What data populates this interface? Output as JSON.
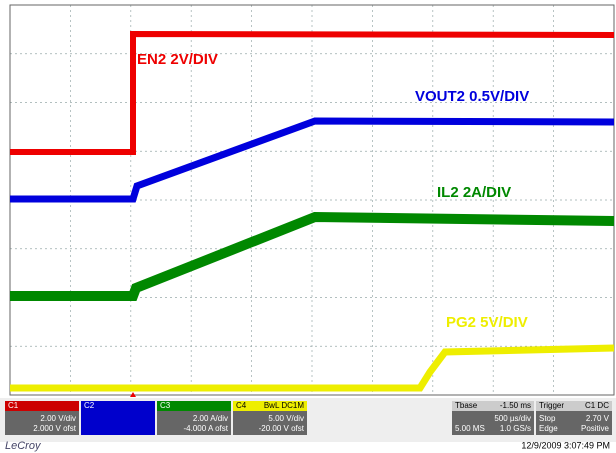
{
  "traces": [
    {
      "label": "EN2 2V/DIV"
    },
    {
      "label": "VOUT2 0.5V/DIV"
    },
    {
      "label": "IL2 2A/DIV"
    },
    {
      "label": "PG2 5V/DIV"
    }
  ],
  "channels": [
    {
      "name": "C1",
      "vdiv": "2.00 V/div",
      "offset": "2.000 V ofst"
    },
    {
      "name": "C2"
    },
    {
      "name": "C3",
      "vdiv": "2.00 A/div",
      "offset": "-4.000 A ofst"
    },
    {
      "name": "C4",
      "coupling": "BwL DC1M",
      "vdiv": "5.00 V/div",
      "offset": "-20.00 V ofst"
    }
  ],
  "timebase": {
    "title": "Tbase",
    "delay": "-1.50 ms",
    "tdiv": "500 µs/div",
    "samples": "5.00 MS",
    "rate": "1.0 GS/s"
  },
  "trigger": {
    "title": "Trigger",
    "source": "C1 DC",
    "mode": "Stop",
    "level": "2.70 V",
    "type": "Edge",
    "slope": "Positive"
  },
  "footer": {
    "brand": "LeCroy",
    "datetime": "12/9/2009 3:07:49 PM"
  }
}
